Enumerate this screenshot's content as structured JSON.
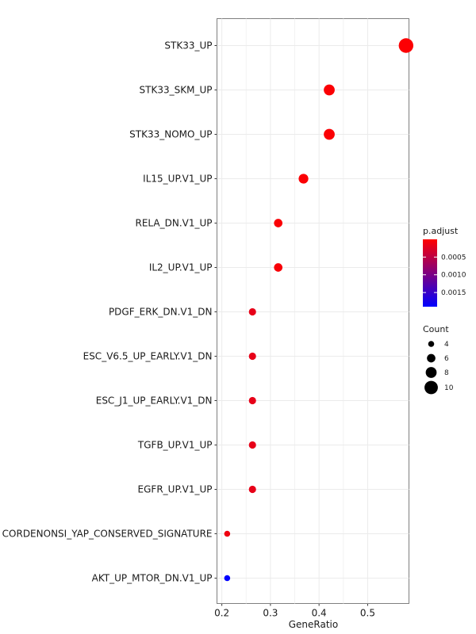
{
  "chart_data": {
    "type": "scatter",
    "xlabel": "GeneRatio",
    "ylabel": "",
    "xlim": [
      0.19,
      0.585
    ],
    "x_ticks": [
      0.2,
      0.3,
      0.4,
      0.5
    ],
    "x_tick_labels": [
      "0.2",
      "0.3",
      "0.4",
      "0.5"
    ],
    "grid": true,
    "legend_placement": "right",
    "categories": [
      "STK33_UP",
      "STK33_SKM_UP",
      "STK33_NOMO_UP",
      "IL15_UP.V1_UP",
      "RELA_DN.V1_UP",
      "IL2_UP.V1_UP",
      "PDGF_ERK_DN.V1_DN",
      "ESC_V6.5_UP_EARLY.V1_DN",
      "ESC_J1_UP_EARLY.V1_DN",
      "TGFB_UP.V1_UP",
      "EGFR_UP.V1_UP",
      "CORDENONSI_YAP_CONSERVED_SIGNATURE",
      "AKT_UP_MTOR_DN.V1_UP"
    ],
    "points": [
      {
        "term": "STK33_UP",
        "gene_ratio": 0.579,
        "count": 11,
        "p_adjust": 2e-05
      },
      {
        "term": "STK33_SKM_UP",
        "gene_ratio": 0.421,
        "count": 8,
        "p_adjust": 3e-05
      },
      {
        "term": "STK33_NOMO_UP",
        "gene_ratio": 0.421,
        "count": 8,
        "p_adjust": 3e-05
      },
      {
        "term": "IL15_UP.V1_UP",
        "gene_ratio": 0.368,
        "count": 7,
        "p_adjust": 3e-05
      },
      {
        "term": "RELA_DN.V1_UP",
        "gene_ratio": 0.316,
        "count": 6,
        "p_adjust": 4e-05
      },
      {
        "term": "IL2_UP.V1_UP",
        "gene_ratio": 0.316,
        "count": 6,
        "p_adjust": 5e-05
      },
      {
        "term": "PDGF_ERK_DN.V1_DN",
        "gene_ratio": 0.263,
        "count": 5,
        "p_adjust": 0.00018
      },
      {
        "term": "ESC_V6.5_UP_EARLY.V1_DN",
        "gene_ratio": 0.263,
        "count": 5,
        "p_adjust": 0.00018
      },
      {
        "term": "ESC_J1_UP_EARLY.V1_DN",
        "gene_ratio": 0.263,
        "count": 5,
        "p_adjust": 0.00018
      },
      {
        "term": "TGFB_UP.V1_UP",
        "gene_ratio": 0.263,
        "count": 5,
        "p_adjust": 0.00018
      },
      {
        "term": "EGFR_UP.V1_UP",
        "gene_ratio": 0.263,
        "count": 5,
        "p_adjust": 0.00018
      },
      {
        "term": "CORDENONSI_YAP_CONSERVED_SIGNATURE",
        "gene_ratio": 0.211,
        "count": 4,
        "p_adjust": 0.00012
      },
      {
        "term": "AKT_UP_MTOR_DN.V1_UP",
        "gene_ratio": 0.211,
        "count": 4,
        "p_adjust": 0.0019
      }
    ],
    "color_legend": {
      "title": "p.adjust",
      "range": [
        0.0,
        0.0019
      ],
      "low_color": "#ff0000",
      "high_color": "#0000ff",
      "ticks": [
        0.0005,
        0.001,
        0.0015
      ],
      "tick_labels": [
        "0.0005",
        "0.0010",
        "0.0015"
      ]
    },
    "size_legend": {
      "title": "Count",
      "values": [
        4,
        6,
        8,
        10
      ],
      "labels": [
        "4",
        "6",
        "8",
        "10"
      ]
    }
  }
}
